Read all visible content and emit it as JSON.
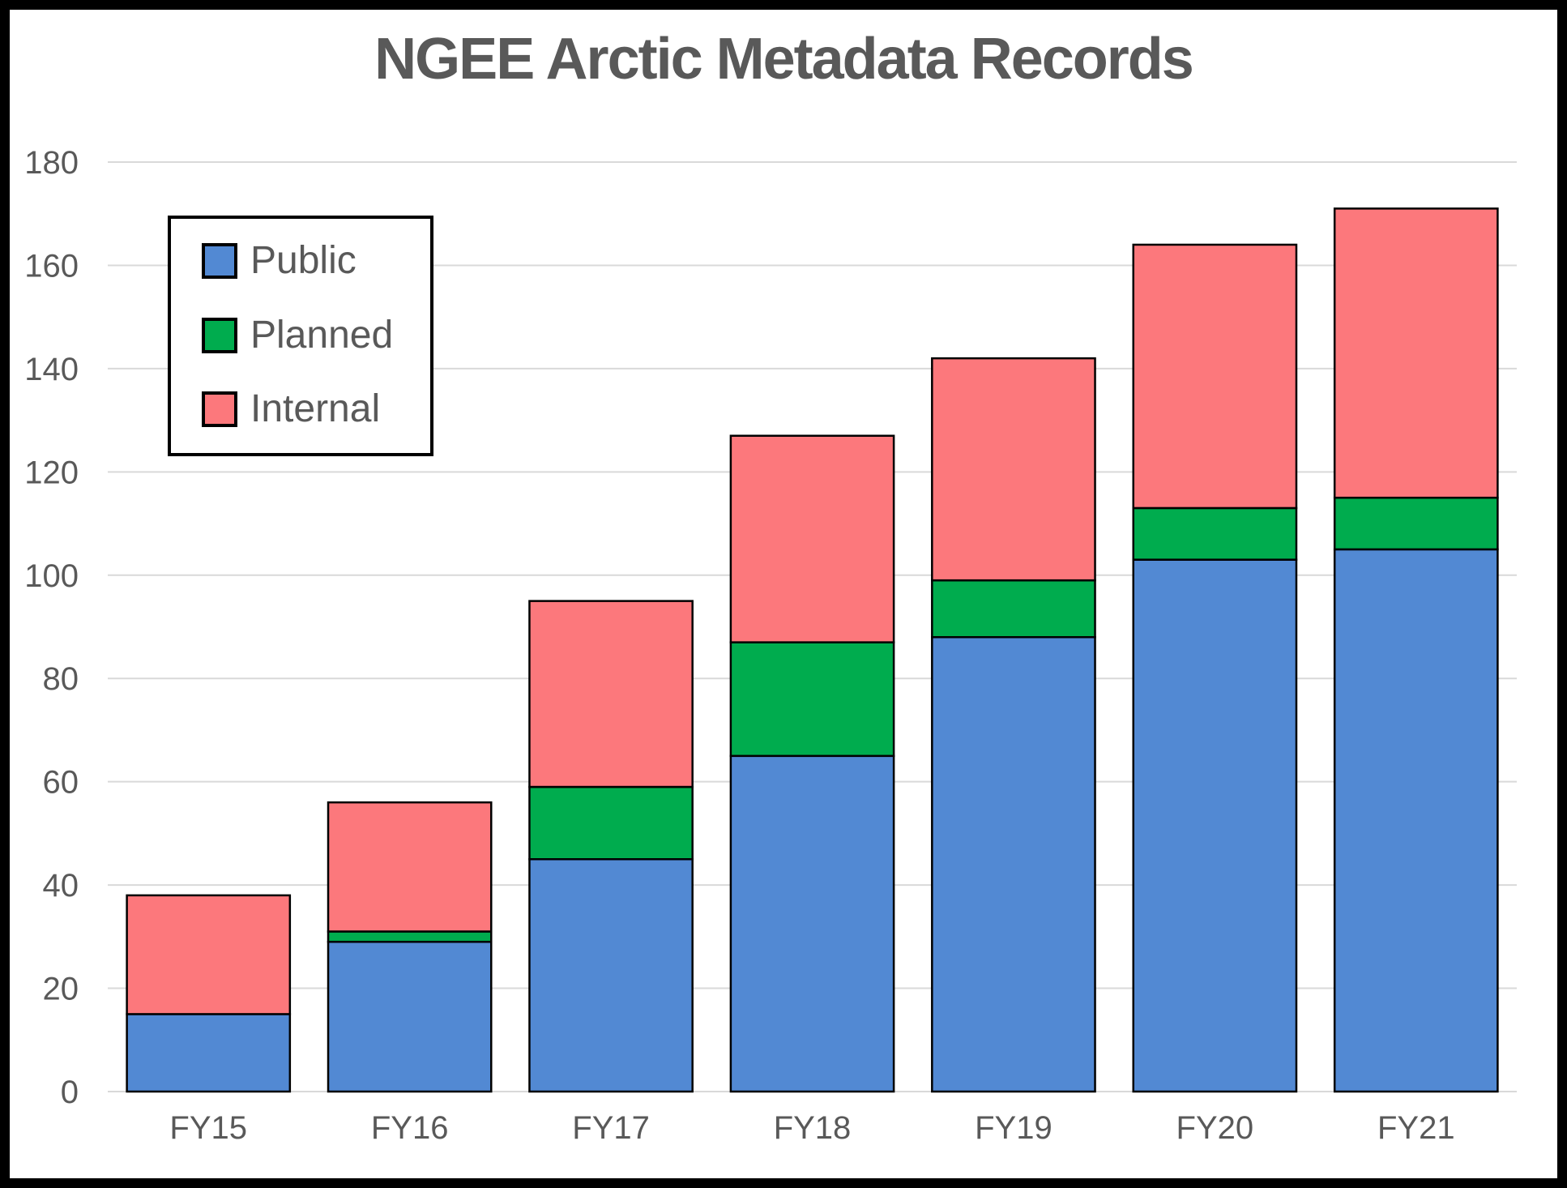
{
  "frame": {
    "border_color": "#000000",
    "background_color": "#FFFFFF"
  },
  "chart_data": {
    "type": "bar",
    "stacked": true,
    "title": "NGEE Arctic Metadata Records",
    "title_color": "#595959",
    "categories": [
      "FY15",
      "FY16",
      "FY17",
      "FY18",
      "FY19",
      "FY20",
      "FY21"
    ],
    "series": [
      {
        "name": "Public",
        "color": "#5289D3",
        "values": [
          15,
          29,
          45,
          65,
          88,
          103,
          105
        ]
      },
      {
        "name": "Planned",
        "color": "#00AC4E",
        "values": [
          0,
          2,
          14,
          22,
          11,
          10,
          10
        ]
      },
      {
        "name": "Internal",
        "color": "#FC787C",
        "values": [
          23,
          25,
          36,
          40,
          43,
          51,
          56
        ]
      }
    ],
    "stack_totals": [
      38,
      56,
      95,
      127,
      142,
      164,
      171
    ],
    "xlabel": "",
    "ylabel": "",
    "ylim": [
      0,
      180
    ],
    "ytick_step": 20,
    "ytick_labels": [
      "0",
      "20",
      "40",
      "60",
      "80",
      "100",
      "120",
      "140",
      "160",
      "180"
    ],
    "grid": true,
    "gridline_color": "#D9D9D9",
    "bar_outline_color": "#000000",
    "axis_text_color": "#595959",
    "legend_position": "top-left",
    "legend_border_color": "#000000",
    "legend_background": "#FFFFFF"
  }
}
